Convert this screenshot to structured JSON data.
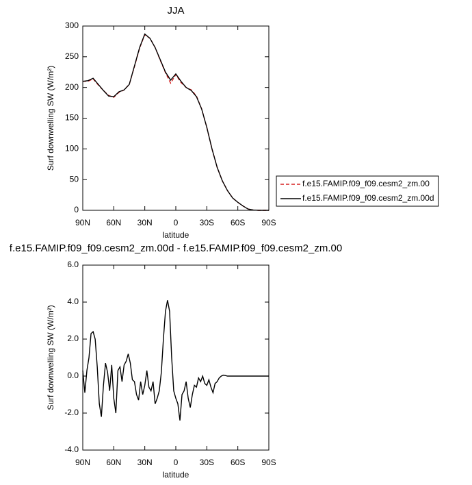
{
  "chart_data": [
    {
      "type": "line",
      "title": "JJA",
      "xlabel": "latitude",
      "ylabel": "Surf downwelling SW (W/m²)",
      "x": [
        90,
        85,
        80,
        75,
        70,
        65,
        60,
        55,
        50,
        45,
        40,
        35,
        30,
        25,
        20,
        15,
        10,
        5,
        0,
        -5,
        -10,
        -15,
        -20,
        -25,
        -30,
        -35,
        -40,
        -45,
        -50,
        -55,
        -60,
        -65,
        -70,
        -75,
        -80,
        -85,
        -90
      ],
      "series": [
        {
          "name": "f.e15.FAMIP.f09_f09.cesm2_zm.00",
          "color": "#d62020",
          "dash": true,
          "values": [
            210,
            210,
            214,
            204,
            195,
            187,
            184,
            192,
            196,
            205,
            234,
            264,
            286,
            280,
            265,
            244,
            224,
            207,
            221,
            208,
            200,
            196,
            186,
            165,
            135,
            100,
            70,
            48,
            32,
            20,
            13,
            7,
            2,
            0.5,
            0,
            0,
            0
          ]
        },
        {
          "name": "f.e15.FAMIP.f09_f09.cesm2_zm.00d",
          "color": "#000000",
          "dash": false,
          "values": [
            210,
            211,
            215,
            205,
            195,
            186,
            185,
            193,
            196,
            205,
            235,
            265,
            287,
            280,
            265,
            245,
            225,
            212,
            222,
            210,
            200,
            195,
            185,
            165,
            135,
            100,
            70,
            48,
            32,
            20,
            13,
            7,
            2,
            0.5,
            0,
            0,
            0
          ]
        }
      ],
      "xlim": [
        90,
        -90
      ],
      "xticks": [
        {
          "value": 90,
          "label": "90N"
        },
        {
          "value": 60,
          "label": "60N"
        },
        {
          "value": 30,
          "label": "30N"
        },
        0,
        {
          "value": -30,
          "label": "30S"
        },
        {
          "value": -60,
          "label": "60S"
        },
        {
          "value": -90,
          "label": "90S"
        }
      ],
      "ylim": [
        0,
        300
      ],
      "yticks": [
        0,
        50,
        100,
        150,
        200,
        250,
        300
      ],
      "legend": "right"
    },
    {
      "type": "line",
      "title": "f.e15.FAMIP.f09_f09.cesm2_zm.00d - f.e15.FAMIP.f09_f09.cesm2_zm.00",
      "xlabel": "latitude",
      "ylabel": "Surf downwelling SW (W/m²)",
      "x": [
        90,
        88,
        86,
        84,
        82,
        80,
        78,
        76,
        74,
        72,
        70,
        68,
        66,
        64,
        62,
        60,
        58,
        56,
        54,
        52,
        50,
        48,
        46,
        44,
        42,
        40,
        38,
        36,
        34,
        32,
        30,
        28,
        26,
        24,
        22,
        20,
        18,
        16,
        14,
        12,
        10,
        8,
        6,
        4,
        2,
        0,
        -2,
        -4,
        -6,
        -8,
        -10,
        -12,
        -14,
        -16,
        -18,
        -20,
        -22,
        -24,
        -26,
        -28,
        -30,
        -32,
        -34,
        -36,
        -38,
        -40,
        -42,
        -44,
        -46,
        -48,
        -50,
        -52,
        -54,
        -56,
        -58,
        -60,
        -62,
        -64,
        -66,
        -68,
        -70,
        -72,
        -74,
        -76,
        -78,
        -80,
        -82,
        -84,
        -86,
        -88,
        -90
      ],
      "series": [
        {
          "color": "#000000",
          "dash": false,
          "values": [
            0.3,
            -0.9,
            0.3,
            1.0,
            2.3,
            2.4,
            2.0,
            0.5,
            -1.5,
            -2.2,
            -0.5,
            0.7,
            0.2,
            -0.8,
            0.6,
            -1.2,
            -2.0,
            0.3,
            0.5,
            -0.3,
            0.6,
            0.8,
            1.2,
            0.7,
            -0.2,
            -0.3,
            -1.0,
            -1.3,
            -0.3,
            -1.0,
            -0.5,
            0.3,
            -0.6,
            -0.8,
            -0.3,
            -1.5,
            -1.2,
            -0.8,
            0.2,
            2.0,
            3.5,
            4.1,
            3.5,
            1.0,
            -0.8,
            -1.2,
            -1.5,
            -2.4,
            -1.0,
            -0.8,
            -0.3,
            -1.2,
            -1.7,
            -1.0,
            -0.5,
            -0.6,
            -0.1,
            -0.3,
            0.0,
            -0.4,
            -0.5,
            -0.2,
            -0.6,
            -0.9,
            -0.4,
            -0.3,
            -0.1,
            0.0,
            0.05,
            0.03,
            0,
            0,
            0,
            0,
            0,
            0,
            0,
            0,
            0,
            0,
            0,
            0,
            0,
            0,
            0,
            0,
            0,
            0,
            0,
            0,
            0
          ]
        }
      ],
      "xlim": [
        90,
        -90
      ],
      "xticks": [
        {
          "value": 90,
          "label": "90N"
        },
        {
          "value": 60,
          "label": "60N"
        },
        {
          "value": 30,
          "label": "30N"
        },
        0,
        {
          "value": -30,
          "label": "30S"
        },
        {
          "value": -60,
          "label": "60S"
        },
        {
          "value": -90,
          "label": "90S"
        }
      ],
      "ylim": [
        -4,
        6
      ],
      "yticks": [
        {
          "value": -4,
          "label": "-4.0"
        },
        {
          "value": -2,
          "label": "-2.0"
        },
        {
          "value": 0,
          "label": "0.0"
        },
        {
          "value": 2,
          "label": "2.0"
        },
        {
          "value": 4,
          "label": "4.0"
        },
        {
          "value": 6,
          "label": "6.0"
        }
      ]
    }
  ]
}
